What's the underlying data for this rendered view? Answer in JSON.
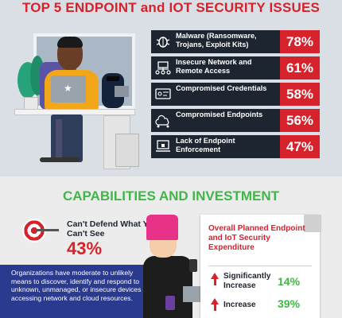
{
  "header": {
    "title": "TOP 5 ENDPOINT and IOT SECURITY ISSUES"
  },
  "issues": [
    {
      "label": "Malware (Ransomware, Trojans, Exploit Kits)",
      "pct": "78%",
      "icon": "bug-icon"
    },
    {
      "label": "Insecure Network and Remote Access",
      "pct": "61%",
      "icon": "network-icon"
    },
    {
      "label": "Compromised Credentials",
      "pct": "58%",
      "icon": "credentials-icon"
    },
    {
      "label": "Compromised Endpoints",
      "pct": "56%",
      "icon": "endpoints-icon"
    },
    {
      "label": "Lack of Endpoint Enforcement",
      "pct": "47%",
      "icon": "laptop-lock-icon"
    }
  ],
  "capabilities": {
    "title": "CAPABILITIES AND INVESTMENT",
    "cant_defend_label": "Can't Defend What You Can't See",
    "cant_defend_pct": "43%",
    "description": "Organizations have moderate to unlikely means to discover, identify and respond to unknown, unmanaged, or insecure devices accessing network and cloud resources."
  },
  "expenditure": {
    "title": "Overall Planned Endpoint and IoT Security Expenditure",
    "rows": [
      {
        "label": "Significantly Increase",
        "pct": "14%"
      },
      {
        "label": "Increase",
        "pct": "39%"
      }
    ]
  },
  "colors": {
    "red": "#d6222b",
    "green": "#41b648",
    "navy": "#1d2530",
    "blue": "#2a3a8f",
    "pink": "#e8328a"
  }
}
